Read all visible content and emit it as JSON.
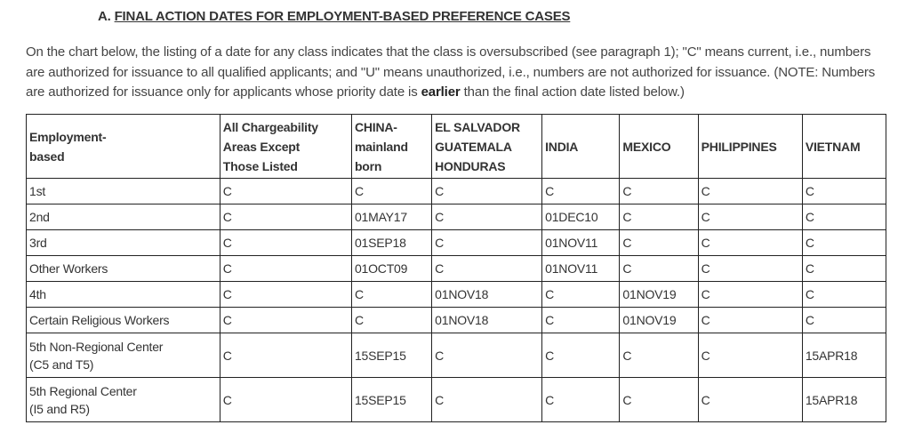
{
  "heading": {
    "prefix": "A. ",
    "title": "FINAL ACTION DATES FOR EMPLOYMENT-BASED PREFERENCE CASES"
  },
  "intro": {
    "text_before_bold": "On the chart below, the listing of a date for any class indicates that the class is oversubscribed (see paragraph 1); \"C\" means current, i.e., numbers are authorized for issuance to all qualified applicants; and \"U\" means unauthorized, i.e., numbers are not authorized for issuance. (NOTE: Numbers are authorized for issuance only for applicants whose priority date is ",
    "bold": "earlier",
    "text_after_bold": " than the final action date listed below.)"
  },
  "table": {
    "headers": [
      [
        "Employment-",
        "based"
      ],
      [
        "All Chargeability",
        "Areas Except",
        "Those Listed"
      ],
      [
        "CHINA-",
        "mainland",
        "born"
      ],
      [
        "EL SALVADOR",
        "GUATEMALA",
        "HONDURAS"
      ],
      [
        "INDIA"
      ],
      [
        "MEXICO"
      ],
      [
        "PHILIPPINES"
      ],
      [
        "VIETNAM"
      ]
    ],
    "rows": [
      {
        "label": [
          "1st"
        ],
        "cells": [
          "C",
          "C",
          "C",
          "C",
          "C",
          "C",
          "C"
        ]
      },
      {
        "label": [
          "2nd"
        ],
        "cells": [
          "C",
          "01MAY17",
          "C",
          "01DEC10",
          "C",
          "C",
          "C"
        ]
      },
      {
        "label": [
          "3rd"
        ],
        "cells": [
          "C",
          "01SEP18",
          "C",
          "01NOV11",
          "C",
          "C",
          "C"
        ]
      },
      {
        "label": [
          "Other Workers"
        ],
        "cells": [
          "C",
          "01OCT09",
          "C",
          "01NOV11",
          "C",
          "C",
          "C"
        ]
      },
      {
        "label": [
          "4th"
        ],
        "cells": [
          "C",
          "C",
          "01NOV18",
          "C",
          "01NOV19",
          "C",
          "C"
        ]
      },
      {
        "label": [
          "Certain Religious Workers"
        ],
        "cells": [
          "C",
          "C",
          "01NOV18",
          "C",
          "01NOV19",
          "C",
          "C"
        ]
      },
      {
        "label": [
          "5th Non-Regional Center",
          "(C5 and T5)"
        ],
        "cells": [
          "C",
          "15SEP15",
          "C",
          "C",
          "C",
          "C",
          "15APR18"
        ]
      },
      {
        "label": [
          "5th Regional Center",
          "(I5 and R5)"
        ],
        "cells": [
          "C",
          "15SEP15",
          "C",
          "C",
          "C",
          "C",
          "15APR18"
        ]
      }
    ]
  }
}
